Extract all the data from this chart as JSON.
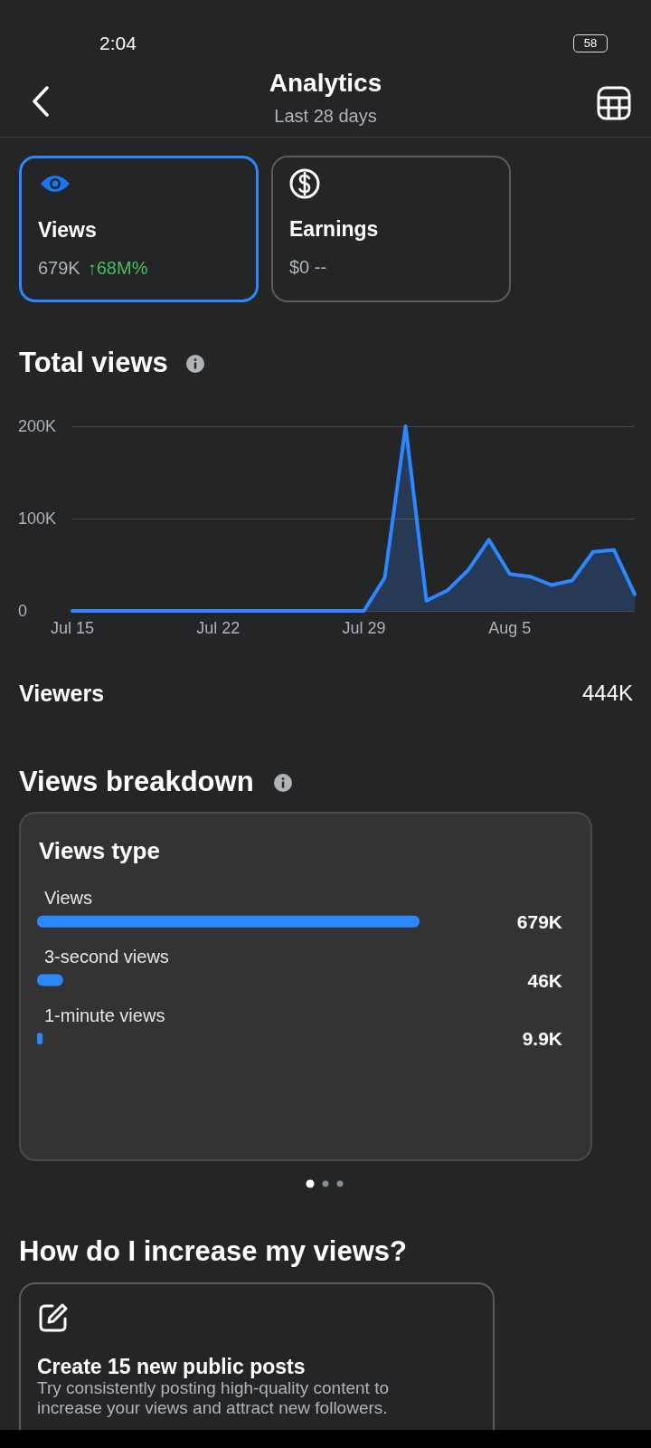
{
  "chart_data": [
    {
      "type": "other",
      "title": "Analytics",
      "subtitle": "Last 28 days",
      "annotations": [
        "2:04",
        "58",
        "Views",
        "679K",
        "↑68M%",
        "Earnings",
        "$0 --"
      ]
    },
    {
      "type": "area",
      "title": "Total views",
      "categories": [
        "Jul 15",
        null,
        null,
        null,
        null,
        null,
        null,
        "Jul 22",
        null,
        null,
        null,
        null,
        null,
        null,
        "Jul 29",
        null,
        null,
        null,
        null,
        null,
        null,
        "Aug 5",
        null,
        null,
        null,
        null,
        null,
        null
      ],
      "values": [
        0,
        0,
        0,
        0,
        0,
        0,
        0,
        0,
        0,
        0,
        0,
        0,
        0,
        0,
        0,
        36000,
        200000,
        11000,
        22000,
        44000,
        77000,
        40000,
        37000,
        28000,
        33000,
        64000,
        66000,
        18000
      ],
      "color": "#2d88ff",
      "ylim": [
        0,
        200000
      ],
      "yticks": [
        {
          "value": 0,
          "label": "0"
        },
        {
          "value": 100000,
          "label": "100K"
        },
        {
          "value": 200000,
          "label": "200K"
        }
      ],
      "grid": "y",
      "marker": "none",
      "annotations": [
        "Viewers",
        "444K"
      ]
    },
    {
      "type": "bar",
      "orientation": "horizontal",
      "title": "Views type",
      "categories": [
        "Views",
        "3-second views",
        "1-minute views"
      ],
      "values": [
        679000,
        46000,
        9900
      ],
      "value_labels": [
        "679K",
        "46K",
        "9.9K"
      ],
      "color": "#2d88ff",
      "annotations": [
        "Views breakdown"
      ]
    },
    {
      "type": "other",
      "title": "How do I increase my views?",
      "annotations": [
        "Create 15 new public posts",
        "Try consistently posting high-quality content to increase your views and attract new followers."
      ]
    }
  ]
}
